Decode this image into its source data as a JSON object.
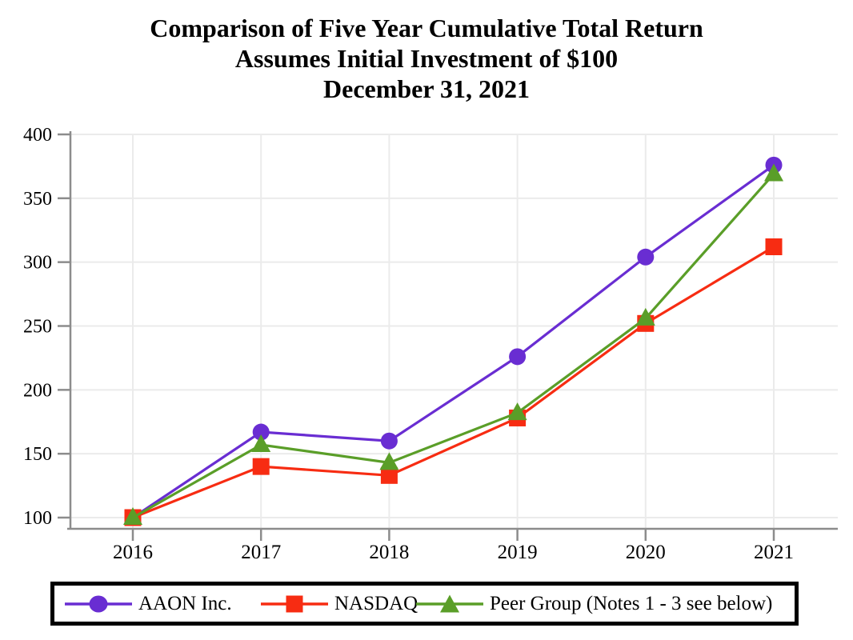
{
  "title": {
    "line1": "Comparison of Five Year Cumulative Total Return",
    "line2": "Assumes Initial Investment of $100",
    "line3": "December 31, 2021"
  },
  "chart_data": {
    "type": "line",
    "title": "Comparison of Five Year Cumulative Total Return — Assumes Initial Investment of $100 — December 31, 2021",
    "categories": [
      "2016",
      "2017",
      "2018",
      "2019",
      "2020",
      "2021"
    ],
    "series": [
      {
        "name": "AAON Inc.",
        "marker": "circle",
        "color": "#692DD2",
        "values": [
          100,
          167,
          160,
          226,
          304,
          376
        ]
      },
      {
        "name": "NASDAQ",
        "marker": "square",
        "color": "#F72C12",
        "values": [
          100,
          140,
          133,
          178,
          252,
          312
        ]
      },
      {
        "name": "Peer Group (Notes 1 - 3 see below)",
        "marker": "triangle",
        "color": "#5A9E28",
        "values": [
          100,
          157,
          143,
          182,
          256,
          369
        ]
      }
    ],
    "xlabel": "",
    "ylabel": "",
    "ylim": [
      100,
      400
    ],
    "y_ticks": [
      100,
      150,
      200,
      250,
      300,
      350,
      400
    ],
    "grid": true,
    "legend_position": "bottom",
    "colors": {
      "axis": "#8C8C8C",
      "grid": "#EBEBEB",
      "tick_label": "#000000",
      "legend_border": "#000000"
    }
  }
}
